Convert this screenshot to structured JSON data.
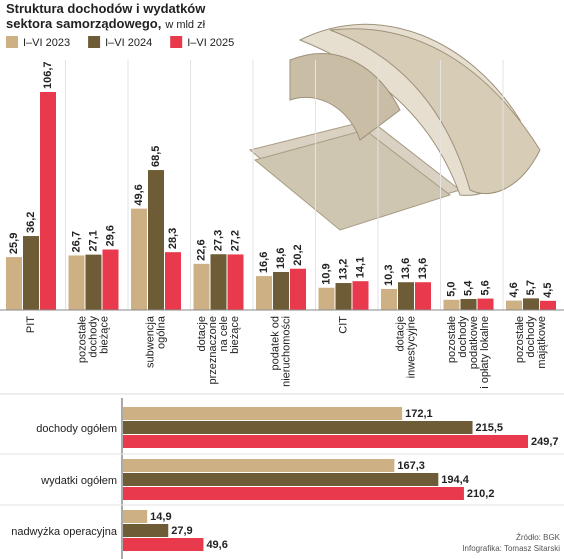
{
  "chart_data": [
    {
      "type": "bar",
      "title": "Struktura dochodów i wydatków sektora samorządowego,",
      "unit": "w mld zł",
      "categories": [
        [
          "PIT"
        ],
        [
          "pozostałe",
          "dochody",
          "bieżące"
        ],
        [
          "subwencja",
          "ogólna"
        ],
        [
          "dotacje",
          "przeznaczone",
          "na cele",
          "bieżące"
        ],
        [
          "podatek od",
          "nieruchomości"
        ],
        [
          "CIT"
        ],
        [
          "dotacje",
          "inwestycyjne"
        ],
        [
          "pozostałe",
          "dochody",
          "podatkowe",
          "i opłaty lokalne"
        ],
        [
          "pozostałe",
          "dochody",
          "majątkowe"
        ]
      ],
      "series": [
        {
          "name": "I–VI 2023",
          "color": "#cdb083",
          "values": [
            25.9,
            26.7,
            49.6,
            22.6,
            16.6,
            10.9,
            10.3,
            5.0,
            4.6
          ],
          "value_labels": [
            "25,9",
            "26,7",
            "49,6",
            "22,6",
            "16,6",
            "10,9",
            "10,3",
            "5,0",
            "4,6"
          ]
        },
        {
          "name": "I–VI 2024",
          "color": "#6e5c36",
          "values": [
            36.2,
            27.1,
            68.5,
            27.3,
            18.6,
            13.2,
            13.6,
            5.4,
            5.7
          ],
          "value_labels": [
            "36,2",
            "27,1",
            "68,5",
            "27,3",
            "18,6",
            "13,2",
            "13,6",
            "5,4",
            "5,7"
          ]
        },
        {
          "name": "I–VI 2025",
          "color": "#e83a4c",
          "values": [
            106.7,
            29.6,
            28.3,
            27.2,
            20.2,
            14.1,
            13.6,
            5.6,
            4.5
          ],
          "value_labels": [
            "106,7",
            "29,6",
            "28,3",
            "27,2",
            "20,2",
            "14,1",
            "13,6",
            "5,6",
            "4,5"
          ]
        }
      ]
    },
    {
      "type": "barh",
      "categories": [
        "dochody ogółem",
        "wydatki ogółem",
        "nadwyżka operacyjna"
      ],
      "series": [
        {
          "color": "#cdb083",
          "values": [
            172.1,
            167.3,
            14.9
          ],
          "value_labels": [
            "172,1",
            "167,3",
            "14,9"
          ]
        },
        {
          "color": "#6e5c36",
          "values": [
            215.5,
            194.4,
            27.9
          ],
          "value_labels": [
            "215,5",
            "194,4",
            "27,9"
          ]
        },
        {
          "color": "#e83a4c",
          "values": [
            249.7,
            210.2,
            49.6
          ],
          "value_labels": [
            "249,7",
            "210,2",
            "49,6"
          ]
        }
      ],
      "source": "Źródło: BGK",
      "credit": "Infografika: Tomasz Sitarski"
    }
  ]
}
